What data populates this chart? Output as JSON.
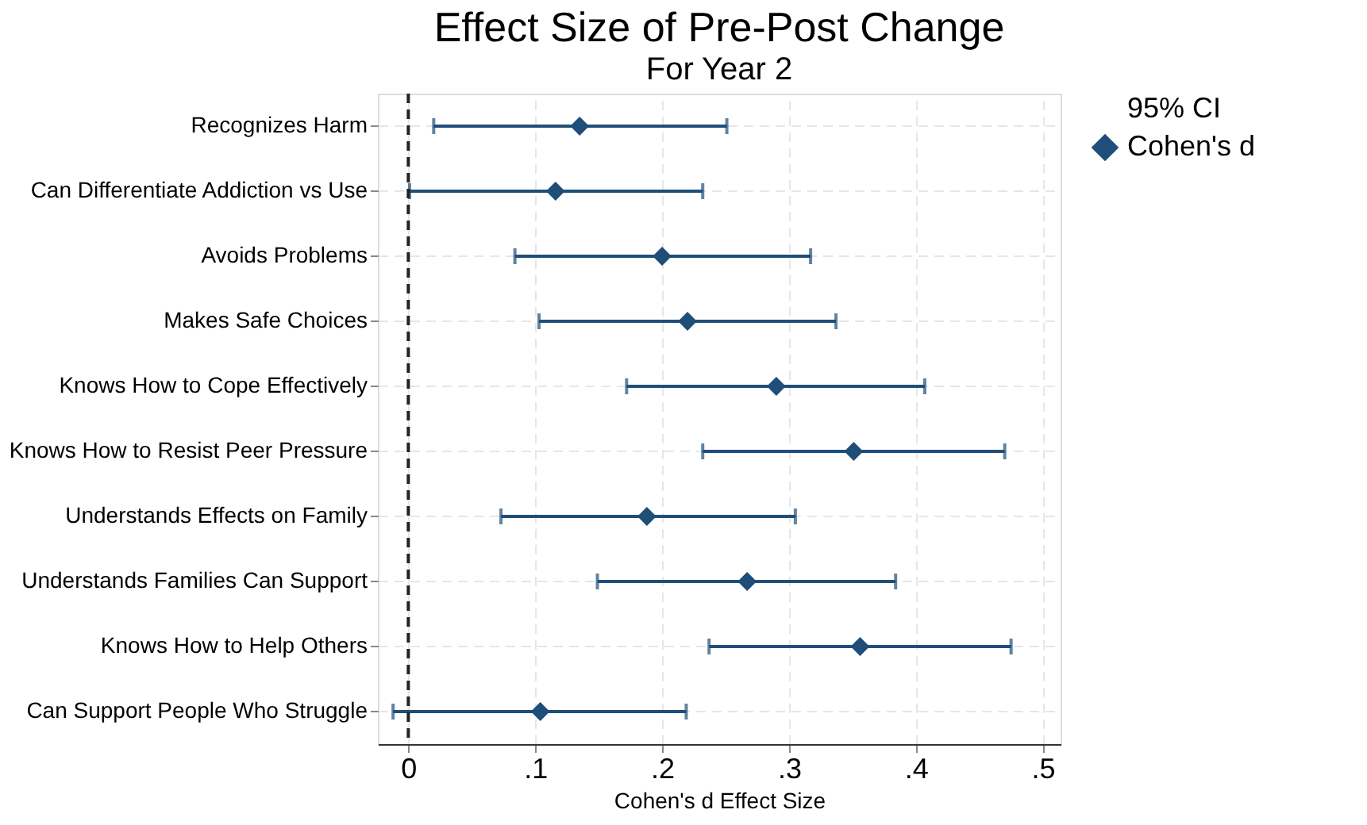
{
  "chart_data": {
    "type": "scatter",
    "title": "Effect Size of Pre-Post Change",
    "subtitle": "For Year 2",
    "xlabel": "Cohen's d Effect Size",
    "orientation": "horizontal",
    "categories": [
      "Recognizes Harm",
      "Can Differentiate Addiction vs Use",
      "Avoids Problems",
      "Makes Safe Choices",
      "Knows How to Cope Effectively",
      "Knows How to Resist Peer Pressure",
      "Understands Effects on Family",
      "Understands Families Can Support",
      "Knows How to Help Others",
      "Can Support People Who Struggle"
    ],
    "series": [
      {
        "name": "Cohen's d",
        "color": "#1f4e79",
        "values": [
          0.135,
          0.116,
          0.2,
          0.22,
          0.29,
          0.351,
          0.188,
          0.267,
          0.356,
          0.104
        ],
        "errors": [
          [
            0.02,
            0.251
          ],
          [
            0.001,
            0.232
          ],
          [
            0.084,
            0.317
          ],
          [
            0.103,
            0.337
          ],
          [
            0.172,
            0.407
          ],
          [
            0.232,
            0.47
          ],
          [
            0.073,
            0.305
          ],
          [
            0.149,
            0.384
          ],
          [
            0.237,
            0.475
          ],
          [
            -0.012,
            0.219
          ]
        ]
      }
    ],
    "annotations": [
      "95% CI"
    ],
    "xlim": [
      -0.024,
      0.514
    ],
    "xticks": [
      0,
      {
        "value": 0.1,
        "label": ".1"
      },
      {
        "value": 0.2,
        "label": ".2"
      },
      {
        "value": 0.3,
        "label": ".3"
      },
      {
        "value": 0.4,
        "label": ".4"
      },
      {
        "value": 0.5,
        "label": ".5"
      }
    ],
    "ref_lines": [
      {
        "axis": "x",
        "value": 0,
        "color": "#222222",
        "line_style": "dashed"
      }
    ],
    "grid": true,
    "legend": "right",
    "marker": "diamond"
  }
}
